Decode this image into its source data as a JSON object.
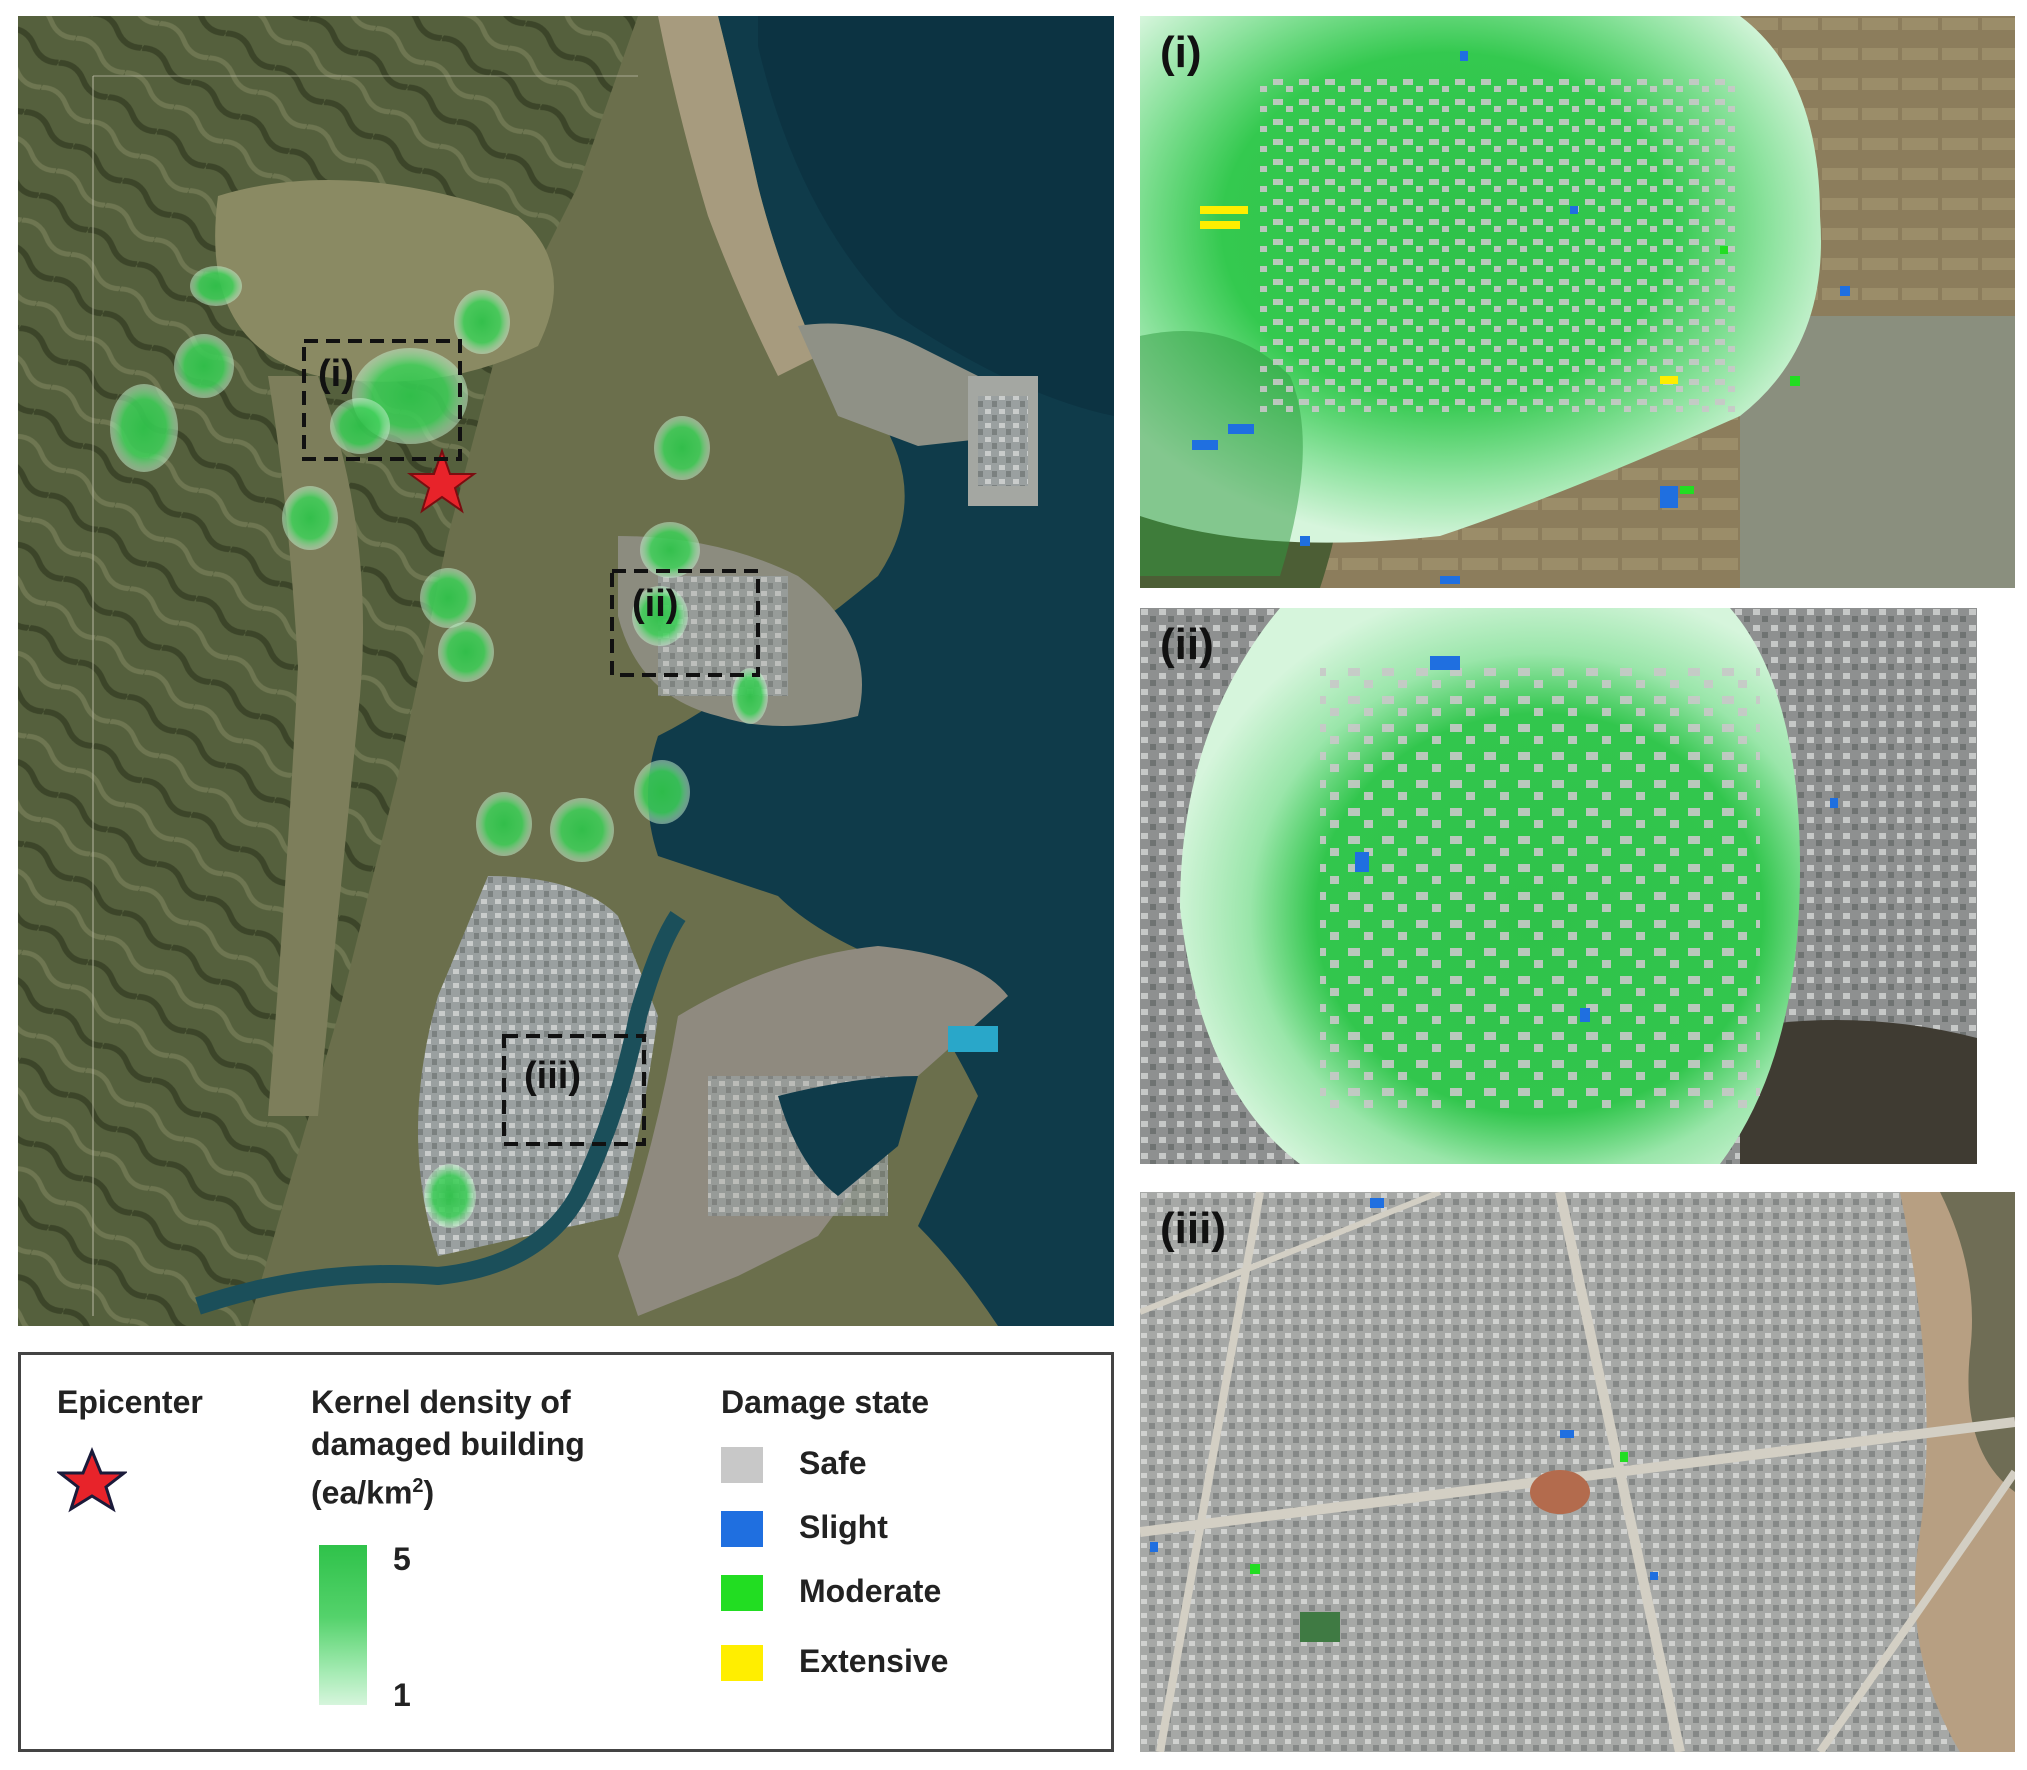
{
  "main_map": {
    "boxes": [
      {
        "label": "(i)"
      },
      {
        "label": "(ii)"
      },
      {
        "label": "(iii)"
      }
    ]
  },
  "insets": [
    {
      "label": "(i)"
    },
    {
      "label": "(ii)"
    },
    {
      "label": "(iii)"
    }
  ],
  "legend": {
    "epicenter": {
      "title": "Epicenter",
      "icon": "red-star-icon",
      "color": "#e8232a"
    },
    "kernel_density": {
      "title_line1": "Kernel density of",
      "title_line2": "damaged building",
      "unit_prefix": "(ea/km",
      "unit_sup": "2",
      "unit_suffix": ")",
      "max_label": "5",
      "min_label": "1",
      "color_high": "#2fc24a",
      "color_low": "#d6f5dc"
    },
    "damage_state": {
      "title": "Damage state",
      "items": [
        {
          "label": "Safe",
          "color": "#c8c8c8"
        },
        {
          "label": "Slight",
          "color": "#1f6fe0"
        },
        {
          "label": "Moderate",
          "color": "#22dd22"
        },
        {
          "label": "Extensive",
          "color": "#ffee00"
        }
      ]
    }
  }
}
